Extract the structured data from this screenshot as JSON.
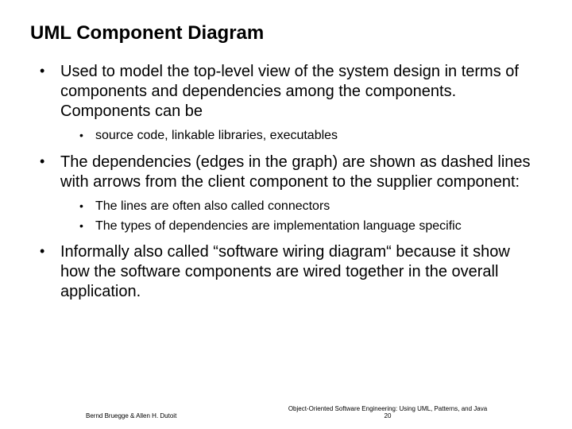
{
  "title": "UML Component Diagram",
  "bullets": {
    "b1": "Used to model the top-level view of the system design in terms of components and dependencies among the components. Components can be",
    "b1_sub1": "source code, linkable libraries, executables",
    "b2": "The dependencies (edges in the graph) are shown as dashed lines with arrows from the client component to the supplier component:",
    "b2_sub1": "The lines are often also called connectors",
    "b2_sub2": "The types of dependencies are implementation language specific",
    "b3": "Informally also called “software wiring diagram“ because it show how the software components are wired together in the overall application."
  },
  "footer": {
    "authors": "Bernd Bruegge & Allen H. Dutoit",
    "book": "Object-Oriented Software Engineering: Using UML, Patterns, and Java",
    "page": "20"
  }
}
